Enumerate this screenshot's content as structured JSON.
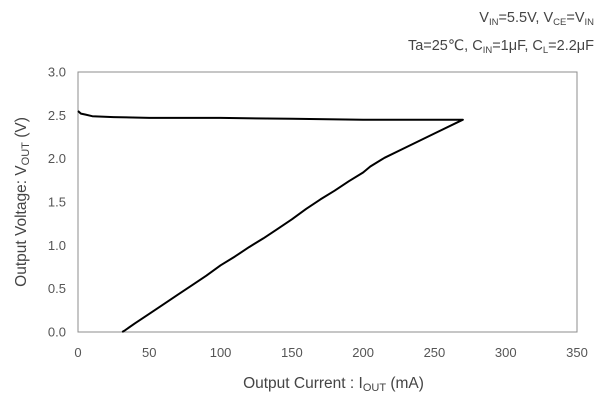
{
  "conditions": {
    "line1": {
      "vin_lhs": "V",
      "vin_sub": "IN",
      "vin_val": "=5.5V, V",
      "vce_sub": "CE",
      "vce_val": "=V",
      "vce_sub2": "IN"
    },
    "line2": {
      "ta": "Ta=25℃, C",
      "cin_sub": "IN",
      "cin_val": "=1μF, C",
      "cl_sub": "L",
      "cl_val": "=2.2μF"
    }
  },
  "chart_data": {
    "type": "line",
    "xlabel": "Output Current : I",
    "xlabel_sub": "OUT",
    "xlabel_unit": " (mA)",
    "ylabel": "Output Voltage: V",
    "ylabel_sub": "OUT",
    "ylabel_unit": " (V)",
    "xlim": [
      0,
      350
    ],
    "ylim": [
      0,
      3.0
    ],
    "x_ticks": [
      "0",
      "50",
      "100",
      "150",
      "200",
      "250",
      "300",
      "350"
    ],
    "y_ticks": [
      "0.0",
      "0.5",
      "1.0",
      "1.5",
      "2.0",
      "2.5",
      "3.0"
    ],
    "grid": false,
    "series": [
      {
        "color": "#000000",
        "points": [
          [
            0,
            2.55
          ],
          [
            2,
            2.52
          ],
          [
            5,
            2.51
          ],
          [
            10,
            2.49
          ],
          [
            25,
            2.48
          ],
          [
            50,
            2.47
          ],
          [
            100,
            2.47
          ],
          [
            150,
            2.46
          ],
          [
            200,
            2.45
          ],
          [
            250,
            2.45
          ],
          [
            270,
            2.45
          ],
          [
            250,
            2.29
          ],
          [
            230,
            2.13
          ],
          [
            215,
            2.01
          ],
          [
            205,
            1.91
          ],
          [
            200,
            1.84
          ],
          [
            190,
            1.74
          ],
          [
            180,
            1.63
          ],
          [
            170,
            1.53
          ],
          [
            160,
            1.42
          ],
          [
            150,
            1.3
          ],
          [
            140,
            1.19
          ],
          [
            130,
            1.08
          ],
          [
            120,
            0.98
          ],
          [
            110,
            0.87
          ],
          [
            100,
            0.77
          ],
          [
            90,
            0.65
          ],
          [
            80,
            0.54
          ],
          [
            70,
            0.43
          ],
          [
            60,
            0.32
          ],
          [
            50,
            0.21
          ],
          [
            40,
            0.1
          ],
          [
            33,
            0.02
          ],
          [
            31,
            0.0
          ]
        ]
      }
    ]
  }
}
